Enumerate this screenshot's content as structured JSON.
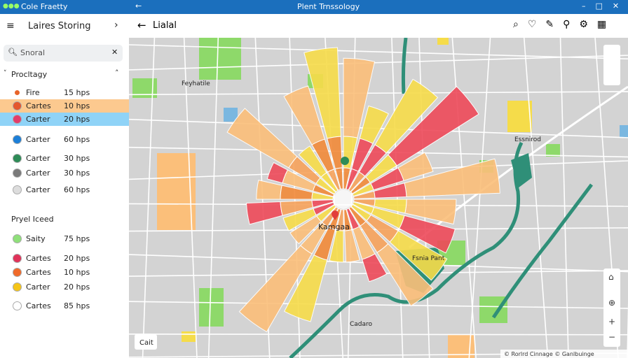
{
  "title_bar": {
    "left": "Cole Fraetty",
    "center": "Plent Trnssology"
  },
  "sidebar": {
    "title": "Laires Storing",
    "search": "Snoral",
    "highlight_colors": [
      "#fcc98f",
      "#8fd3f7"
    ],
    "sections": [
      {
        "title": "Procltagy",
        "items": [
          {
            "name": "Fire",
            "value": "15 hps",
            "color": "#e8642a"
          },
          {
            "name": "Cartes",
            "value": "10 hps",
            "color": "#e4572e"
          },
          {
            "name": "Carter",
            "value": "20 hps",
            "color": "#e23c6a"
          },
          {
            "name": "Carter",
            "value": "60 hps",
            "color": "#1c7fd8"
          },
          {
            "name": "Carter",
            "value": "30 hps",
            "color": "#2e8b57"
          },
          {
            "name": "Carter",
            "value": "30 hps",
            "color": "#7a7a7a"
          },
          {
            "name": "Carter",
            "value": "60 hps",
            "color": "#dddddd"
          }
        ]
      },
      {
        "title": "Pryel Iceed",
        "items": [
          {
            "name": "Saity",
            "value": "75 hps",
            "color": "#8fe07a"
          },
          {
            "name": "Cartes",
            "value": "20 hps",
            "color": "#e0335a"
          },
          {
            "name": "Cartes",
            "value": "10 hps",
            "color": "#f06a2a"
          },
          {
            "name": "Carter",
            "value": "20 hps",
            "color": "#f5c518"
          },
          {
            "name": "Cartes",
            "value": "85 hps",
            "color": "#ffffff"
          }
        ]
      }
    ]
  },
  "map": {
    "toolbar_title": "Lialal",
    "labels": [
      "Feyhatile",
      "Kamgaa",
      "Cadaro",
      "Fsnia Pant",
      "Essnirod"
    ],
    "button": "Cait",
    "attribution": "© Rorlrd Cinnage  © Ganlbuinge"
  }
}
